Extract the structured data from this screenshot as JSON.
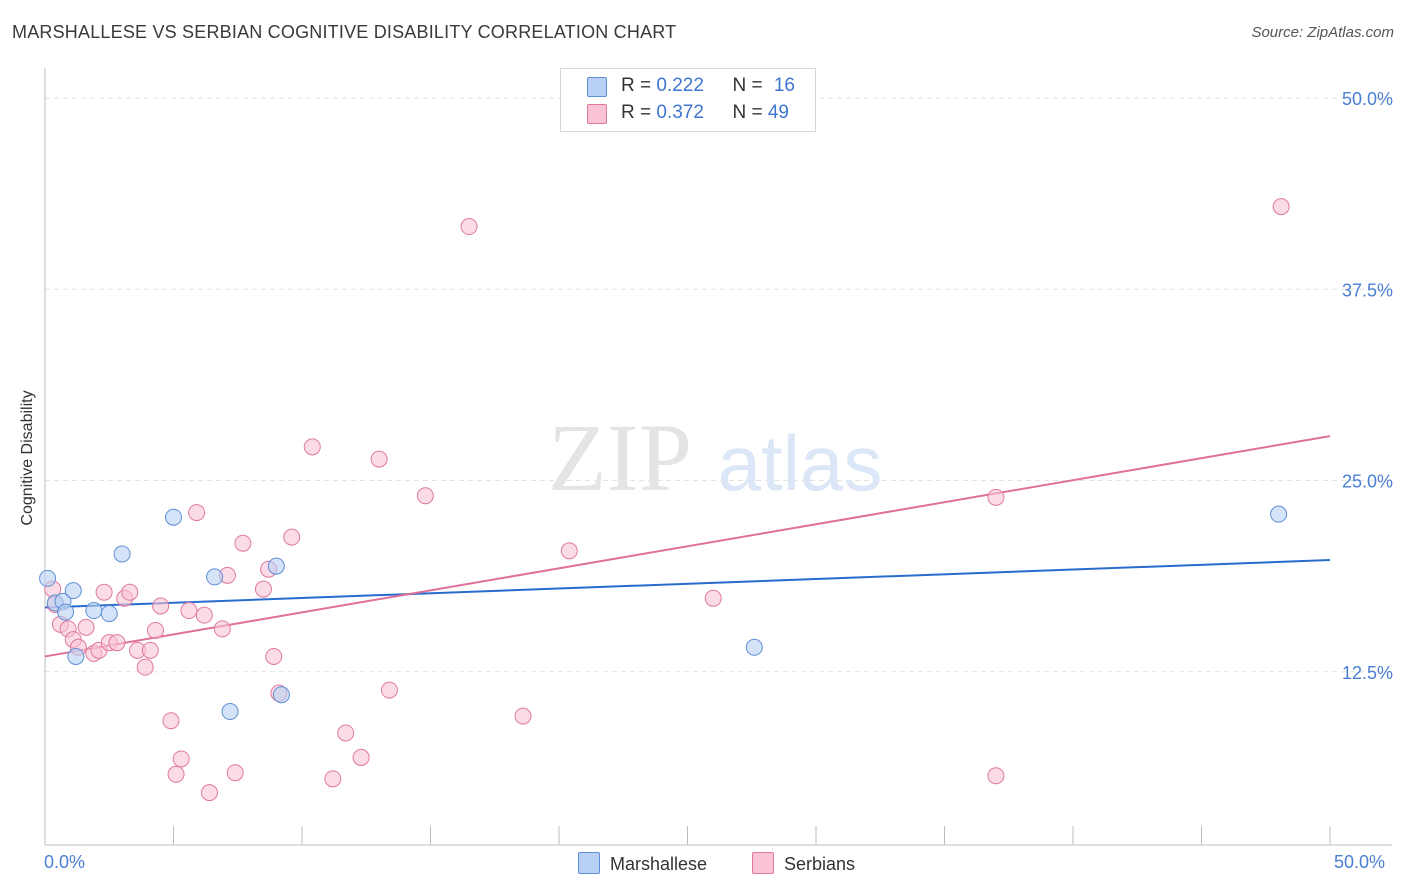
{
  "title": "MARSHALLESE VS SERBIAN COGNITIVE DISABILITY CORRELATION CHART",
  "source": "Source: ZipAtlas.com",
  "watermark": {
    "zip": "ZIP",
    "atlas": "atlas"
  },
  "legend": {
    "r_label": "R = ",
    "n_label": "N = ",
    "marshallese": {
      "r": "0.222",
      "n": "16"
    },
    "serbians": {
      "r": "0.372",
      "n": "49"
    }
  },
  "colors": {
    "marshallese_fill": "#b7d0f4",
    "marshallese_stroke": "#5f8fd6",
    "marshallese_line": "#2a6ccd",
    "serbians_fill": "#f9c3d4",
    "serbians_stroke": "#e07a9d",
    "serbians_line": "#e0709a",
    "tick_text": "#4a7fd4"
  },
  "chart_data": {
    "type": "scatter",
    "title": "MARSHALLESE VS SERBIAN COGNITIVE DISABILITY CORRELATION CHART",
    "xlabel": "",
    "ylabel": "Cognitive Disability",
    "xlim": [
      0,
      50
    ],
    "ylim": [
      0,
      50
    ],
    "x_tick_labels": [
      "0.0%",
      "50.0%"
    ],
    "y_ticks": [
      12.5,
      25.0,
      37.5,
      50.0
    ],
    "y_tick_labels": [
      "12.5%",
      "25.0%",
      "37.5%",
      "50.0%"
    ],
    "grid": true,
    "series": [
      {
        "name": "Marshallese",
        "r": 0.222,
        "n": 16,
        "trend": {
          "y_at_x0": 16.7,
          "y_at_x50": 19.8
        },
        "points": [
          {
            "x": 0.1,
            "y": 18.6
          },
          {
            "x": 0.4,
            "y": 17.0
          },
          {
            "x": 0.7,
            "y": 17.1
          },
          {
            "x": 0.8,
            "y": 16.4
          },
          {
            "x": 1.1,
            "y": 17.8
          },
          {
            "x": 1.2,
            "y": 13.5
          },
          {
            "x": 1.9,
            "y": 16.5
          },
          {
            "x": 2.5,
            "y": 16.3
          },
          {
            "x": 3.0,
            "y": 20.2
          },
          {
            "x": 5.0,
            "y": 22.6
          },
          {
            "x": 6.6,
            "y": 18.7
          },
          {
            "x": 7.2,
            "y": 9.9
          },
          {
            "x": 9.0,
            "y": 19.4
          },
          {
            "x": 9.2,
            "y": 11.0
          },
          {
            "x": 27.6,
            "y": 14.1
          },
          {
            "x": 48.0,
            "y": 22.8
          }
        ]
      },
      {
        "name": "Serbians",
        "r": 0.372,
        "n": 49,
        "trend": {
          "y_at_x0": 13.5,
          "y_at_x50": 27.9
        },
        "points": [
          {
            "x": 0.3,
            "y": 17.9
          },
          {
            "x": 0.4,
            "y": 16.9
          },
          {
            "x": 0.6,
            "y": 15.6
          },
          {
            "x": 0.9,
            "y": 15.3
          },
          {
            "x": 1.1,
            "y": 14.6
          },
          {
            "x": 1.3,
            "y": 14.1
          },
          {
            "x": 1.6,
            "y": 15.4
          },
          {
            "x": 1.9,
            "y": 13.7
          },
          {
            "x": 2.1,
            "y": 13.9
          },
          {
            "x": 2.3,
            "y": 17.7
          },
          {
            "x": 2.5,
            "y": 14.4
          },
          {
            "x": 2.8,
            "y": 14.4
          },
          {
            "x": 3.1,
            "y": 17.3
          },
          {
            "x": 3.3,
            "y": 17.7
          },
          {
            "x": 3.6,
            "y": 13.9
          },
          {
            "x": 3.9,
            "y": 12.8
          },
          {
            "x": 4.1,
            "y": 13.9
          },
          {
            "x": 4.3,
            "y": 15.2
          },
          {
            "x": 4.5,
            "y": 16.8
          },
          {
            "x": 4.9,
            "y": 9.3
          },
          {
            "x": 5.1,
            "y": 5.8
          },
          {
            "x": 5.3,
            "y": 6.8
          },
          {
            "x": 5.6,
            "y": 16.5
          },
          {
            "x": 5.9,
            "y": 22.9
          },
          {
            "x": 6.2,
            "y": 16.2
          },
          {
            "x": 6.4,
            "y": 4.6
          },
          {
            "x": 6.9,
            "y": 15.3
          },
          {
            "x": 7.1,
            "y": 18.8
          },
          {
            "x": 7.4,
            "y": 5.9
          },
          {
            "x": 7.7,
            "y": 20.9
          },
          {
            "x": 8.5,
            "y": 17.9
          },
          {
            "x": 8.7,
            "y": 19.2
          },
          {
            "x": 8.9,
            "y": 13.5
          },
          {
            "x": 9.1,
            "y": 11.1
          },
          {
            "x": 9.6,
            "y": 21.3
          },
          {
            "x": 10.4,
            "y": 27.2
          },
          {
            "x": 11.2,
            "y": 5.5
          },
          {
            "x": 11.7,
            "y": 8.5
          },
          {
            "x": 12.3,
            "y": 6.9
          },
          {
            "x": 13.0,
            "y": 26.4
          },
          {
            "x": 13.4,
            "y": 11.3
          },
          {
            "x": 14.8,
            "y": 24.0
          },
          {
            "x": 16.5,
            "y": 41.6
          },
          {
            "x": 18.6,
            "y": 9.6
          },
          {
            "x": 20.4,
            "y": 20.4
          },
          {
            "x": 26.0,
            "y": 17.3
          },
          {
            "x": 37.0,
            "y": 23.9
          },
          {
            "x": 37.0,
            "y": 5.7
          },
          {
            "x": 48.1,
            "y": 42.9
          }
        ]
      }
    ]
  }
}
